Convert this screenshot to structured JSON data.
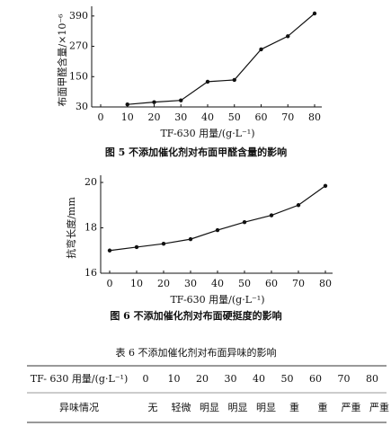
{
  "chart_data": [
    {
      "type": "line",
      "y_label": "布面甲醛含量/×10⁻⁶",
      "x_label": "TF-630 用量/(g·L⁻¹)",
      "caption": "图 5   不添加催化剂对布面甲醛含量的影响",
      "x": [
        10,
        20,
        30,
        40,
        50,
        60,
        70,
        80
      ],
      "series": [
        {
          "color": "#111111",
          "values": [
            40,
            49,
            56,
            130,
            137,
            258,
            310,
            400
          ]
        }
      ],
      "xlim": [
        0,
        80
      ],
      "xticks": [
        0,
        10,
        20,
        30,
        40,
        50,
        60,
        70,
        80
      ],
      "ylim": [
        30,
        400
      ],
      "yticks": [
        30,
        150,
        270,
        390
      ]
    },
    {
      "type": "line",
      "y_label": "抗弯长度/mm",
      "x_label": "TF-630 用量/(g·L⁻¹)",
      "caption": "图 6   不添加催化剂对布面硬挺度的影响",
      "x": [
        0,
        10,
        20,
        30,
        40,
        50,
        60,
        70,
        80
      ],
      "series": [
        {
          "color": "#111111",
          "values": [
            17.0,
            17.15,
            17.3,
            17.5,
            17.9,
            18.25,
            18.55,
            19.0,
            19.85
          ]
        }
      ],
      "xlim": [
        0,
        80
      ],
      "xticks": [
        0,
        10,
        20,
        30,
        40,
        50,
        60,
        70,
        80
      ],
      "ylim": [
        16,
        20
      ],
      "yticks": [
        16,
        18,
        20
      ]
    }
  ],
  "table": {
    "title": "表 6   不添加催化剂对布面异味的影响",
    "rows": [
      [
        "TF- 630 用量/(g·L⁻¹)",
        0,
        10,
        20,
        30,
        40,
        50,
        60,
        70,
        80
      ],
      [
        "异味情况",
        "无",
        "轻微",
        "明显",
        "明显",
        "明显",
        "重",
        "重",
        "严重",
        "严重"
      ]
    ]
  }
}
